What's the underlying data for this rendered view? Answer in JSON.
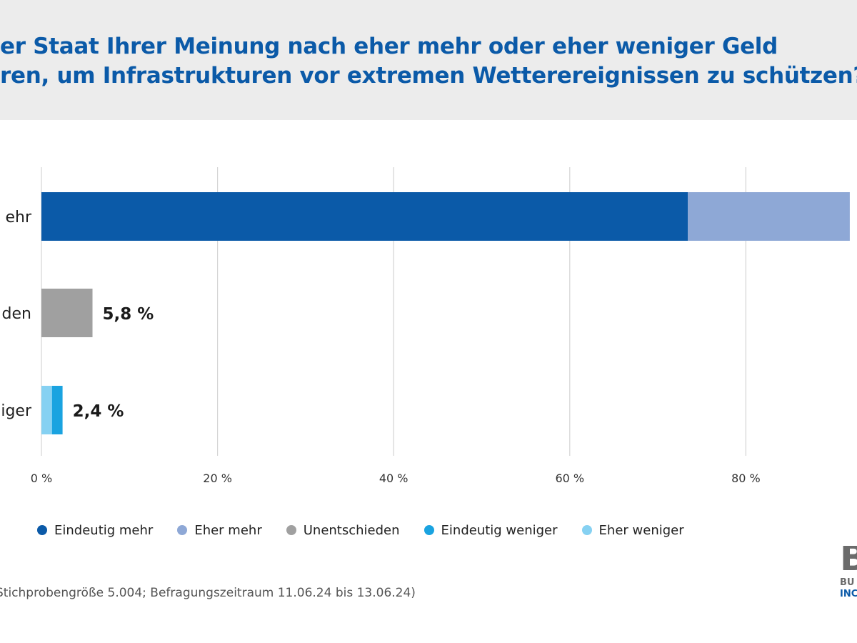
{
  "header": {
    "title_line1": "er Staat Ihrer Meinung nach eher mehr oder eher weniger Geld",
    "title_line2": "ren, um Infrastrukturen vor extremen Wetterereignissen zu schützen?"
  },
  "chart_data": {
    "type": "bar",
    "orientation": "horizontal",
    "stacked": true,
    "categories": [
      "ehr",
      "den",
      "iger"
    ],
    "series": [
      {
        "name": "Eindeutig mehr",
        "color": "#0b5aa8",
        "values": [
          73.4,
          0,
          0
        ]
      },
      {
        "name": "Eher mehr",
        "color": "#8ea8d6",
        "values": [
          18.4,
          0,
          0
        ]
      },
      {
        "name": "Unentschieden",
        "color": "#a0a0a0",
        "values": [
          0,
          5.8,
          0
        ]
      },
      {
        "name": "Eindeutig weniger",
        "color": "#1aa3e0",
        "values": [
          0,
          0,
          1.2
        ]
      },
      {
        "name": "Eher weniger",
        "color": "#86d1f2",
        "values": [
          0,
          0,
          1.2
        ]
      }
    ],
    "stack_order": [
      "Eher weniger",
      "Eindeutig weniger",
      "Eindeutig mehr",
      "Eher mehr",
      "Unentschieden"
    ],
    "data_labels": [
      "",
      "5,8 %",
      "2,4 %"
    ],
    "x_ticks": [
      0,
      20,
      40,
      60,
      80
    ],
    "x_tick_labels": [
      "0 %",
      "20 %",
      "40 %",
      "60 %",
      "80 %"
    ],
    "xlim": [
      0,
      92
    ],
    "grid": true,
    "legend_position": "bottom"
  },
  "legend": [
    {
      "label": "Eindeutig mehr",
      "color": "#0b5aa8"
    },
    {
      "label": "Eher mehr",
      "color": "#8ea8d6"
    },
    {
      "label": "Unentschieden",
      "color": "#a0a0a0"
    },
    {
      "label": "Eindeutig weniger",
      "color": "#1aa3e0"
    },
    {
      "label": "Eher weniger",
      "color": "#86d1f2"
    }
  ],
  "footnote": "Stichprobengröße 5.004; Befragungszeitraum 11.06.24 bis 13.06.24)",
  "logo": {
    "big": "B",
    "line1": "BU",
    "line2": "INC"
  }
}
